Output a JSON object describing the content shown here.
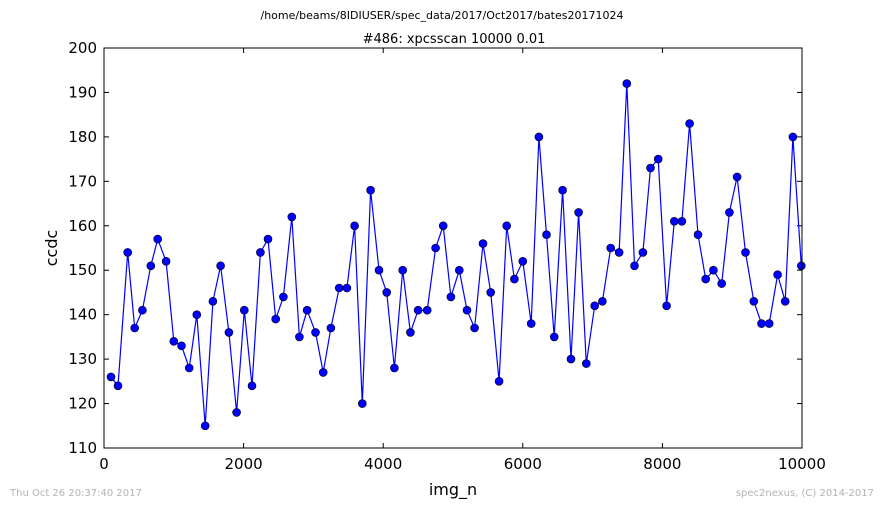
{
  "page": {
    "suptitle": "/home/beams/8IDIUSER/spec_data/2017/Oct2017/bates20171024",
    "footer_left": "Thu Oct 26 20:37:40 2017",
    "footer_right": "spec2nexus, (C) 2014-2017"
  },
  "chart_data": {
    "type": "line",
    "title": "#486: xpcsscan 10000 0.01",
    "xlabel": "img_n",
    "ylabel": "ccdc",
    "xlim": [
      0,
      10000
    ],
    "ylim": [
      110,
      200
    ],
    "xticks": [
      0,
      2000,
      4000,
      6000,
      8000,
      10000
    ],
    "yticks": [
      110,
      120,
      130,
      140,
      150,
      160,
      170,
      180,
      190,
      200
    ],
    "grid": false,
    "legend": "none",
    "line_color": "#0000ff",
    "marker_fill": "#0000ff",
    "marker_edge": "#000000",
    "series": [
      {
        "x": [
          100,
          200,
          340,
          440,
          550,
          670,
          770,
          890,
          1000,
          1110,
          1220,
          1330,
          1450,
          1560,
          1670,
          1790,
          1900,
          2010,
          2120,
          2240,
          2350,
          2460,
          2570,
          2690,
          2800,
          2910,
          3030,
          3140,
          3250,
          3370,
          3480,
          3590,
          3700,
          3820,
          3940,
          4050,
          4160,
          4280,
          4390,
          4500,
          4630,
          4750,
          4860,
          4970,
          5090,
          5200,
          5310,
          5430,
          5540,
          5660,
          5770,
          5880,
          6000,
          6120,
          6230,
          6340,
          6450,
          6570,
          6690,
          6800,
          6910,
          7030,
          7140,
          7260,
          7380,
          7490,
          7600,
          7720,
          7830,
          7940,
          8060,
          8170,
          8280,
          8390,
          8510,
          8620,
          8730,
          8850,
          8960,
          9070,
          9190,
          9310,
          9420,
          9530,
          9650,
          9760,
          9870,
          9990
        ],
        "y": [
          126,
          124,
          154,
          137,
          141,
          151,
          157,
          152,
          134,
          133,
          128,
          140,
          115,
          143,
          151,
          136,
          118,
          141,
          124,
          154,
          157,
          139,
          144,
          162,
          135,
          141,
          136,
          127,
          137,
          146,
          146,
          160,
          120,
          168,
          150,
          145,
          128,
          150,
          136,
          141,
          141,
          155,
          160,
          144,
          150,
          141,
          137,
          156,
          145,
          125,
          160,
          148,
          152,
          138,
          180,
          158,
          135,
          168,
          130,
          163,
          129,
          142,
          143,
          155,
          154,
          192,
          151,
          154,
          173,
          175,
          142,
          161,
          161,
          183,
          158,
          148,
          150,
          147,
          163,
          171,
          154,
          143,
          138,
          138,
          149,
          143,
          180,
          151
        ]
      }
    ]
  }
}
